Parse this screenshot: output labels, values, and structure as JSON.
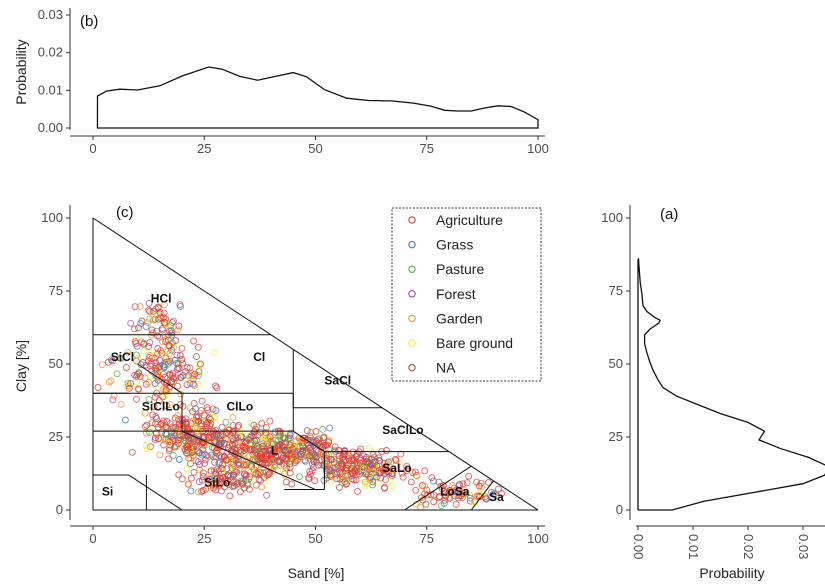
{
  "chart_data": [
    {
      "type": "area",
      "panel_label": "(b)",
      "ylabel": "Probability",
      "xlim": [
        0,
        100
      ],
      "ylim": [
        0,
        0.03
      ],
      "x_ticks": [
        "0",
        "25",
        "50",
        "75",
        "100"
      ],
      "y_ticks": [
        "0.00",
        "0.01",
        "0.02",
        "0.03"
      ],
      "x": [
        1,
        3,
        6,
        10,
        15,
        20,
        26,
        29,
        33,
        37,
        41,
        45,
        48,
        52,
        57,
        62,
        67,
        72,
        76,
        79,
        82,
        85,
        88,
        91,
        94,
        97,
        100
      ],
      "y": [
        0.0085,
        0.0098,
        0.0103,
        0.0101,
        0.0112,
        0.0138,
        0.0162,
        0.0156,
        0.0137,
        0.0127,
        0.0137,
        0.0147,
        0.0136,
        0.0102,
        0.0079,
        0.0073,
        0.0072,
        0.0066,
        0.0058,
        0.0047,
        0.0045,
        0.0045,
        0.0053,
        0.0059,
        0.0057,
        0.0042,
        0.0022
      ]
    },
    {
      "type": "scatter",
      "panel_label": "(c)",
      "xlabel": "Sand [%]",
      "ylabel": "Clay [%]",
      "xlim": [
        0,
        100
      ],
      "ylim": [
        0,
        100
      ],
      "x_ticks": [
        "0",
        "25",
        "50",
        "75",
        "100"
      ],
      "y_ticks": [
        "0",
        "25",
        "50",
        "75",
        "100"
      ],
      "regions": [
        {
          "label": "HCl",
          "x": 13,
          "y": 71
        },
        {
          "label": "Cl",
          "x": 36,
          "y": 51
        },
        {
          "label": "SiCl",
          "x": 4,
          "y": 51
        },
        {
          "label": "SaCl",
          "x": 52,
          "y": 43
        },
        {
          "label": "SiClLo",
          "x": 11,
          "y": 34
        },
        {
          "label": "ClLo",
          "x": 30,
          "y": 34
        },
        {
          "label": "SaClLo",
          "x": 65,
          "y": 26
        },
        {
          "label": "L",
          "x": 40,
          "y": 19
        },
        {
          "label": "SaLo",
          "x": 65,
          "y": 13
        },
        {
          "label": "SiLo",
          "x": 25,
          "y": 8
        },
        {
          "label": "Si",
          "x": 2,
          "y": 5
        },
        {
          "label": "LoSa",
          "x": 78,
          "y": 5
        },
        {
          "label": "Sa",
          "x": 89,
          "y": 3
        }
      ],
      "series": [
        {
          "name": "Agriculture",
          "color": "#e03a3a"
        },
        {
          "name": "Grass",
          "color": "#3a78c8"
        },
        {
          "name": "Pasture",
          "color": "#4bb04b"
        },
        {
          "name": "Forest",
          "color": "#9a4fb3"
        },
        {
          "name": "Garden",
          "color": "#ff8c1a"
        },
        {
          "name": "Bare ground",
          "color": "#f2ee3a"
        },
        {
          "name": "NA",
          "color": "#a0522d"
        }
      ],
      "points_note_clusters": [
        {
          "cx": 40,
          "cy": 20,
          "sx": 14,
          "sy": 7,
          "n": 520
        },
        {
          "cx": 22,
          "cy": 26,
          "sx": 10,
          "sy": 8,
          "n": 260
        },
        {
          "cx": 60,
          "cy": 14,
          "sx": 10,
          "sy": 5,
          "n": 220
        },
        {
          "cx": 15,
          "cy": 48,
          "sx": 10,
          "sy": 10,
          "n": 180
        },
        {
          "cx": 15,
          "cy": 65,
          "sx": 6,
          "sy": 7,
          "n": 60
        },
        {
          "cx": 82,
          "cy": 6,
          "sx": 9,
          "sy": 4,
          "n": 90
        },
        {
          "cx": 30,
          "cy": 10,
          "sx": 8,
          "sy": 4,
          "n": 90
        }
      ]
    },
    {
      "type": "area",
      "panel_label": "(a)",
      "xlabel": "Probability",
      "orientation": "vertical",
      "xlim": [
        0,
        0.035
      ],
      "ylim": [
        0,
        100
      ],
      "x_ticks": [
        "0.00",
        "0.01",
        "0.02",
        "0.03"
      ],
      "y_ticks": [
        "0",
        "25",
        "50",
        "75",
        "100"
      ],
      "y": [
        0,
        3,
        6,
        9,
        12,
        15,
        18,
        21,
        24,
        27,
        30,
        33,
        36,
        39,
        42,
        45,
        48,
        51,
        54,
        57,
        60,
        62,
        64,
        65,
        66,
        68,
        70,
        74,
        78,
        83,
        86
      ],
      "x": [
        0.0062,
        0.012,
        0.021,
        0.03,
        0.034,
        0.0345,
        0.031,
        0.026,
        0.022,
        0.023,
        0.02,
        0.015,
        0.011,
        0.007,
        0.0045,
        0.0035,
        0.0027,
        0.0021,
        0.0016,
        0.0012,
        0.0012,
        0.0022,
        0.0038,
        0.004,
        0.003,
        0.0016,
        0.0009,
        0.0007,
        0.0004,
        0.0002,
        0.0001
      ]
    }
  ],
  "axis_titles": {
    "top_ylabel": "Probability",
    "main_xlabel": "Sand [%]",
    "main_ylabel": "Clay [%]",
    "right_xlabel": "Probability"
  },
  "panel_labels": {
    "b": "(b)",
    "c": "(c)",
    "a": "(a)"
  },
  "legend": {
    "items": [
      "Agriculture",
      "Grass",
      "Pasture",
      "Forest",
      "Garden",
      "Bare ground",
      "NA"
    ]
  }
}
